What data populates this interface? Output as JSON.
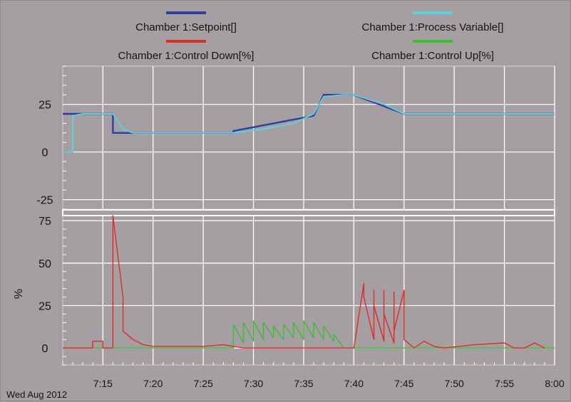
{
  "colors": {
    "background": "#a59ea2",
    "grid": "#ffffff",
    "setpoint": "#2f3f9f",
    "process_variable": "#5fcfd9",
    "control_down": "#e02b2b",
    "control_up": "#3cbf2d"
  },
  "date_label": "Wed Aug 2012",
  "chart_data": [
    {
      "type": "line",
      "title": "",
      "xlabel": "",
      "ylabel": "",
      "xlim": [
        "7:11",
        "8:00"
      ],
      "ylim": [
        -30,
        45
      ],
      "x_ticks": [
        "7:15",
        "7:20",
        "7:25",
        "7:30",
        "7:35",
        "7:40",
        "7:45",
        "7:50",
        "7:55",
        "8:00"
      ],
      "y_ticks": [
        "25",
        "0",
        "-25"
      ],
      "legend": [
        "Chamber 1:Setpoint[]",
        "Chamber 1:Process Variable[]"
      ],
      "legend_position": "top",
      "grid": true,
      "series": [
        {
          "name": "Chamber 1:Setpoint[]",
          "x": [
            "7:11",
            "7:16",
            "7:16",
            "7:19",
            "7:28",
            "7:28",
            "7:29",
            "7:30",
            "7:31",
            "7:32",
            "7:33",
            "7:34",
            "7:35",
            "7:36",
            "7:37",
            "7:40",
            "7:41",
            "7:42",
            "7:43",
            "7:44",
            "7:45",
            "8:00"
          ],
          "values": [
            20,
            20,
            10,
            10,
            10,
            11,
            12,
            13,
            14,
            15,
            16,
            17,
            18,
            19,
            30,
            30,
            28,
            26,
            24,
            22,
            20,
            20
          ]
        },
        {
          "name": "Chamber 1:Process Variable[]",
          "x": [
            "7:11",
            "7:12",
            "7:12",
            "7:13",
            "7:16",
            "7:17",
            "7:18",
            "7:19",
            "7:28",
            "7:31",
            "7:34",
            "7:36",
            "7:37",
            "7:39",
            "7:40",
            "7:43",
            "7:45",
            "8:00"
          ],
          "values": [
            0,
            0,
            19,
            20,
            20,
            12,
            10,
            10,
            10,
            12,
            15,
            20,
            29,
            30,
            30,
            25,
            20,
            20
          ]
        }
      ]
    },
    {
      "type": "line",
      "title": "",
      "xlabel": "",
      "ylabel": "%",
      "xlim": [
        "7:11",
        "8:00"
      ],
      "ylim": [
        -10,
        78
      ],
      "x_ticks": [
        "7:15",
        "7:20",
        "7:25",
        "7:30",
        "7:35",
        "7:40",
        "7:45",
        "7:50",
        "7:55",
        "8:00"
      ],
      "y_ticks": [
        "75",
        "50",
        "25",
        "0"
      ],
      "legend": [
        "Chamber 1:Control Down[%]",
        "Chamber 1:Control Up[%]"
      ],
      "legend_position": "top",
      "grid": true,
      "series": [
        {
          "name": "Chamber 1:Control Down[%]",
          "x": [
            "7:11",
            "7:14",
            "7:14",
            "7:15",
            "7:15",
            "7:16",
            "7:16",
            "7:16",
            "7:17",
            "7:17",
            "7:18",
            "7:19",
            "7:20",
            "7:25",
            "7:27",
            "7:28",
            "7:29",
            "7:40",
            "7:41",
            "7:41",
            "7:42",
            "7:42",
            "7:42",
            "7:43",
            "7:43",
            "7:43",
            "7:44",
            "7:44",
            "7:44",
            "7:45",
            "7:45",
            "7:46",
            "7:47",
            "7:48",
            "7:49",
            "7:52",
            "7:55",
            "7:56",
            "7:57",
            "7:58",
            "7:59"
          ],
          "values": [
            0,
            0,
            4,
            4,
            0,
            0,
            78,
            78,
            30,
            10,
            5,
            2,
            1,
            1,
            2,
            1,
            0,
            0,
            38,
            30,
            5,
            34,
            25,
            4,
            34,
            20,
            3,
            33,
            10,
            34,
            5,
            0,
            4,
            1,
            0,
            2,
            3,
            0,
            0,
            3,
            0
          ]
        },
        {
          "name": "Chamber 1:Control Up[%]",
          "x": [
            "7:11",
            "7:28",
            "7:28",
            "7:29",
            "7:29",
            "7:30",
            "7:30",
            "7:31",
            "7:31",
            "7:32",
            "7:32",
            "7:33",
            "7:33",
            "7:34",
            "7:34",
            "7:35",
            "7:35",
            "7:36",
            "7:36",
            "7:37",
            "7:37",
            "7:38",
            "7:38",
            "7:39",
            "8:00"
          ],
          "values": [
            0,
            0,
            14,
            3,
            15,
            4,
            16,
            5,
            15,
            6,
            13,
            5,
            14,
            6,
            15,
            5,
            16,
            6,
            15,
            5,
            13,
            4,
            8,
            0,
            0
          ]
        }
      ]
    }
  ]
}
